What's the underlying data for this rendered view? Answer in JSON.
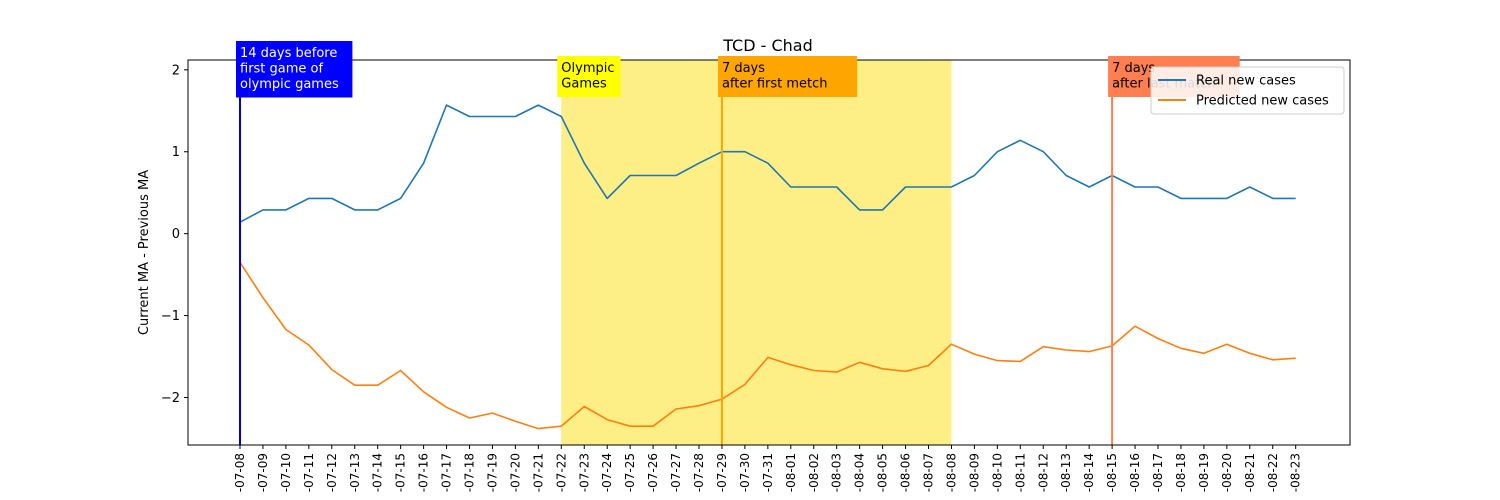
{
  "chart_data": {
    "type": "line",
    "title": "TCD - Chad",
    "xlabel": "",
    "ylabel": "Current MA - Previous MA",
    "ylim": [
      -2.58,
      2.12
    ],
    "yticks": [
      -2,
      -1,
      0,
      1,
      2
    ],
    "ytick_labels": [
      "−2",
      "−1",
      "0",
      "1",
      "2"
    ],
    "grid": false,
    "legend_position": "top-right",
    "categories": [
      "2021-07-08",
      "2021-07-09",
      "2021-07-10",
      "2021-07-11",
      "2021-07-12",
      "2021-07-13",
      "2021-07-14",
      "2021-07-15",
      "2021-07-16",
      "2021-07-17",
      "2021-07-18",
      "2021-07-19",
      "2021-07-20",
      "2021-07-21",
      "2021-07-22",
      "2021-07-23",
      "2021-07-24",
      "2021-07-25",
      "2021-07-26",
      "2021-07-27",
      "2021-07-28",
      "2021-07-29",
      "2021-07-30",
      "2021-07-31",
      "2021-08-01",
      "2021-08-02",
      "2021-08-03",
      "2021-08-04",
      "2021-08-05",
      "2021-08-06",
      "2021-08-07",
      "2021-08-08",
      "2021-08-09",
      "2021-08-10",
      "2021-08-11",
      "2021-08-12",
      "2021-08-13",
      "2021-08-14",
      "2021-08-15",
      "2021-08-16",
      "2021-08-17",
      "2021-08-18",
      "2021-08-19",
      "2021-08-20",
      "2021-08-21",
      "2021-08-22",
      "2021-08-23"
    ],
    "tick_labels": [
      "-07-08",
      "-07-09",
      "-07-10",
      "-07-11",
      "-07-12",
      "-07-13",
      "-07-14",
      "-07-15",
      "-07-16",
      "-07-17",
      "-07-18",
      "-07-19",
      "-07-20",
      "-07-21",
      "-07-22",
      "-07-23",
      "-07-24",
      "-07-25",
      "-07-26",
      "-07-27",
      "-07-28",
      "-07-29",
      "-07-30",
      "-07-31",
      "-08-01",
      "-08-02",
      "-08-03",
      "-08-04",
      "-08-05",
      "-08-06",
      "-08-07",
      "-08-08",
      "-08-09",
      "-08-10",
      "-08-11",
      "-08-12",
      "-08-13",
      "-08-14",
      "-08-15",
      "-08-16",
      "-08-17",
      "-08-18",
      "-08-19",
      "-08-20",
      "-08-21",
      "-08-22",
      "-08-23"
    ],
    "series": [
      {
        "name": "Real new cases",
        "color": "#1f77b4",
        "values": [
          0.14,
          0.29,
          0.29,
          0.43,
          0.43,
          0.29,
          0.29,
          0.43,
          0.86,
          1.57,
          1.43,
          1.43,
          1.43,
          1.57,
          1.43,
          0.86,
          0.43,
          0.71,
          0.71,
          0.71,
          0.86,
          1.0,
          1.0,
          0.86,
          0.57,
          0.57,
          0.57,
          0.29,
          0.29,
          0.57,
          0.57,
          0.57,
          0.71,
          1.0,
          1.14,
          1.0,
          0.71,
          0.57,
          0.71,
          0.57,
          0.57,
          0.43,
          0.43,
          0.43,
          0.57,
          0.43,
          0.43
        ]
      },
      {
        "name": "Predicted new cases",
        "color": "#ff7f0e",
        "values": [
          -0.35,
          -0.78,
          -1.17,
          -1.36,
          -1.66,
          -1.85,
          -1.85,
          -1.67,
          -1.93,
          -2.12,
          -2.25,
          -2.19,
          -2.29,
          -2.38,
          -2.35,
          -2.11,
          -2.27,
          -2.35,
          -2.35,
          -2.14,
          -2.1,
          -2.02,
          -1.84,
          -1.51,
          -1.6,
          -1.67,
          -1.69,
          -1.57,
          -1.65,
          -1.68,
          -1.61,
          -1.35,
          -1.47,
          -1.55,
          -1.56,
          -1.38,
          -1.42,
          -1.44,
          -1.37,
          -1.13,
          -1.28,
          -1.4,
          -1.46,
          -1.35,
          -1.46,
          -1.54,
          -1.52
        ]
      }
    ],
    "shaded_region": {
      "start": "2021-07-22",
      "end": "2021-08-08",
      "color": "#fdee85"
    },
    "annotations": [
      {
        "date": "2021-07-08",
        "lines": [
          "14 days before",
          "first game of",
          "olympic games"
        ],
        "line_color": "#0000cc",
        "box_color": "#0000ff",
        "text_color": "#ffffff"
      },
      {
        "date": "2021-07-22",
        "lines": [
          "Olympic",
          "Games"
        ],
        "line_color": null,
        "box_color": "#ffff00",
        "text_color": "#000000"
      },
      {
        "date": "2021-07-29",
        "lines": [
          "7 days",
          "after first metch"
        ],
        "line_color": "#ffa500",
        "box_color": "#ffa500",
        "text_color": "#000000"
      },
      {
        "date": "2021-08-15",
        "lines": [
          "7 days",
          "after last match"
        ],
        "line_color": "#ff7f50",
        "box_color": "#ff7f50",
        "text_color": "#000000"
      }
    ]
  }
}
